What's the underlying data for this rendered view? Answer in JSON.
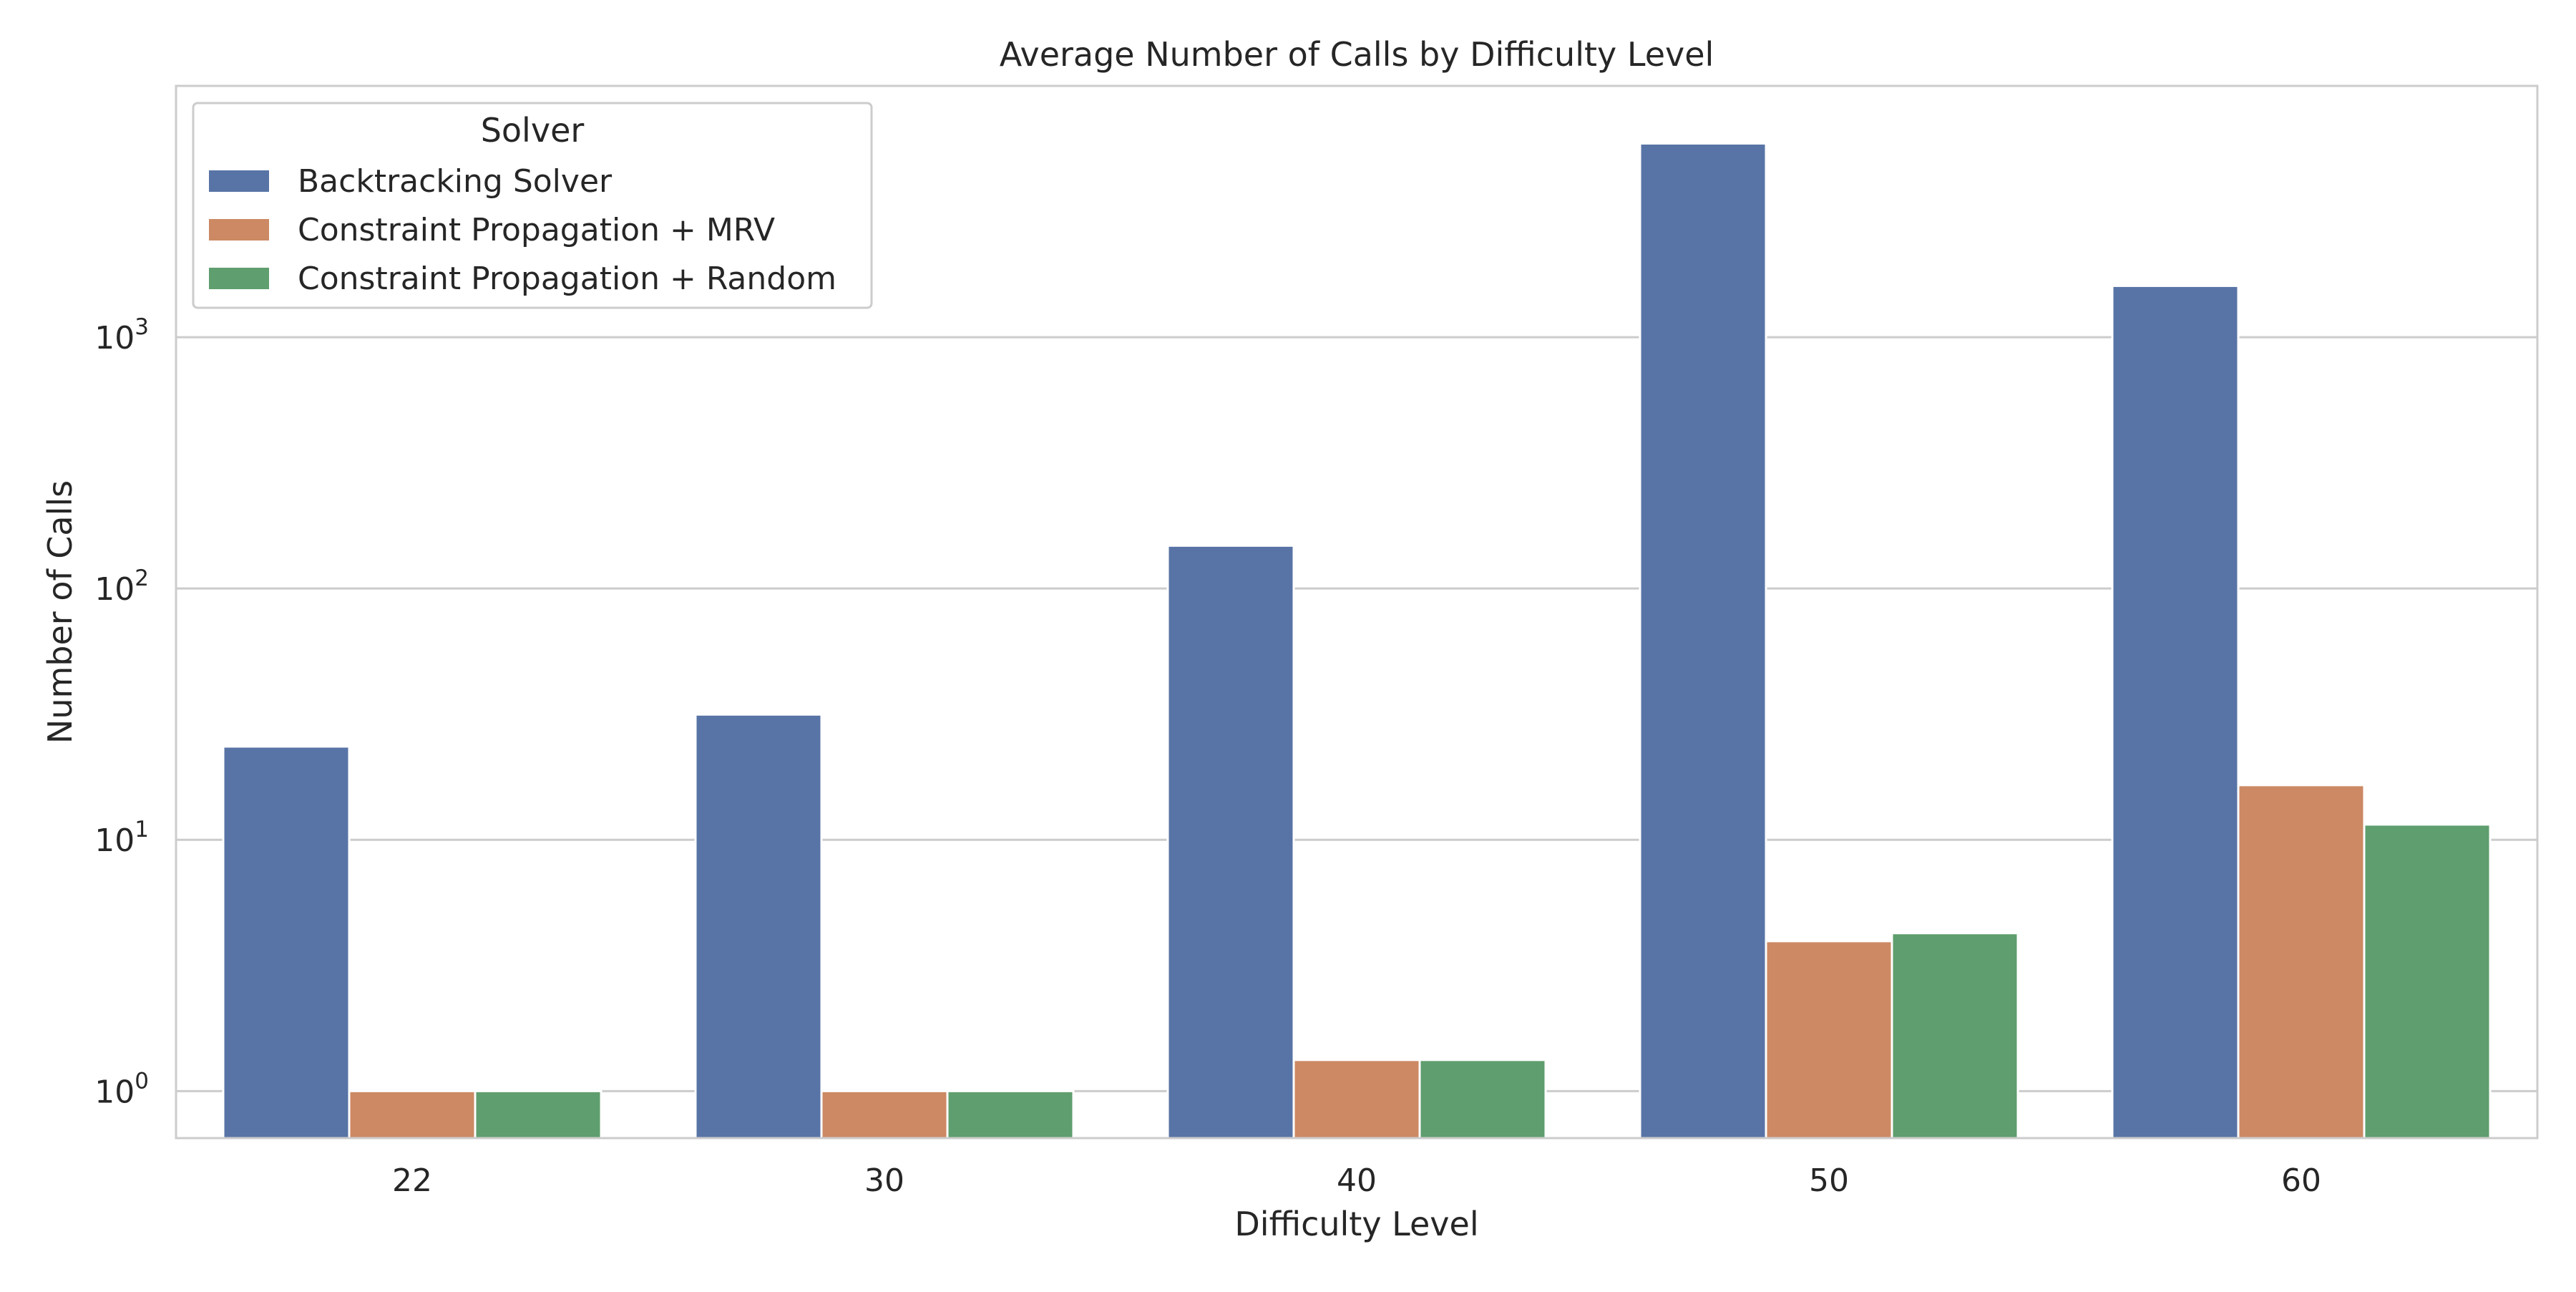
{
  "chart_data": {
    "type": "bar",
    "title": "Average Number of Calls by Difficulty Level",
    "xlabel": "Difficulty Level",
    "ylabel": "Number of Calls",
    "yscale": "log",
    "ylim": [
      0.65,
      10000
    ],
    "yticks": [
      {
        "value": 1,
        "mantissa": "10",
        "exp": "0"
      },
      {
        "value": 10,
        "mantissa": "10",
        "exp": "1"
      },
      {
        "value": 100,
        "mantissa": "10",
        "exp": "2"
      },
      {
        "value": 1000,
        "mantissa": "10",
        "exp": "3"
      }
    ],
    "grid": true,
    "legend": {
      "title": "Solver",
      "placement": "top-left"
    },
    "categories": [
      "22",
      "30",
      "40",
      "50",
      "60"
    ],
    "series": [
      {
        "name": "Backtracking Solver",
        "color": "#5874a6",
        "values": [
          23.5,
          31.5,
          148,
          5900,
          1600
        ]
      },
      {
        "name": "Constraint Propagation + MRV",
        "color": "#cc8963",
        "values": [
          1.0,
          1.0,
          1.33,
          3.95,
          16.5
        ]
      },
      {
        "name": "Constraint Propagation + Random",
        "color": "#5f9e6e",
        "values": [
          1.0,
          1.0,
          1.33,
          4.25,
          11.5
        ]
      }
    ]
  }
}
